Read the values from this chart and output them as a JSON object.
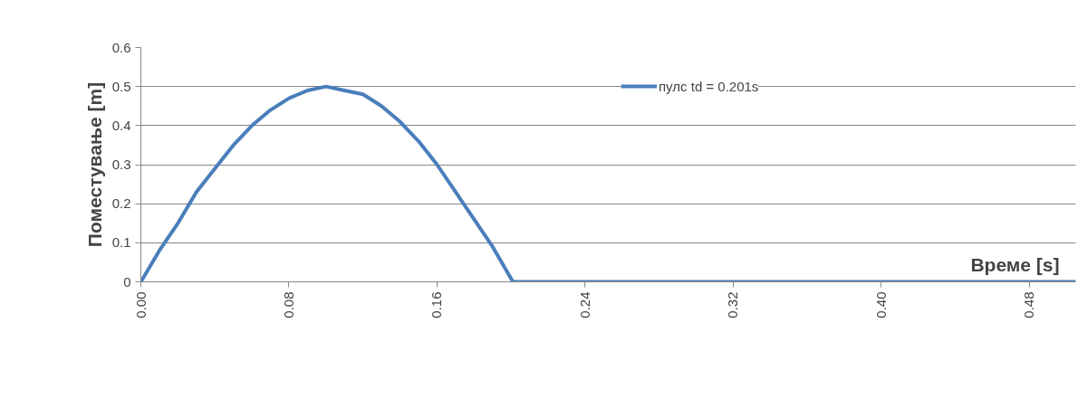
{
  "chart_data": {
    "type": "line",
    "xlabel": "Време [s]",
    "ylabel": "Поместување [m]",
    "series": [
      {
        "name": "пулс td = 0.201s",
        "color": "#4a7ebb",
        "x": [
          0,
          0.01,
          0.02,
          0.03,
          0.04,
          0.05,
          0.06,
          0.07,
          0.08,
          0.09,
          0.1,
          0.11,
          0.12,
          0.13,
          0.14,
          0.15,
          0.16,
          0.17,
          0.18,
          0.19,
          0.201,
          0.505
        ],
        "values": [
          0,
          0.08,
          0.15,
          0.23,
          0.29,
          0.35,
          0.4,
          0.44,
          0.47,
          0.49,
          0.5,
          0.49,
          0.48,
          0.45,
          0.41,
          0.36,
          0.3,
          0.23,
          0.16,
          0.09,
          0,
          0
        ]
      }
    ],
    "xlim": [
      0,
      0.505
    ],
    "xticks": [
      {
        "value": 0,
        "label": "0.00"
      },
      {
        "value": 0.08,
        "label": "0.08"
      },
      {
        "value": 0.16,
        "label": "0.16"
      },
      {
        "value": 0.24,
        "label": "0.24"
      },
      {
        "value": 0.32,
        "label": "0.32"
      },
      {
        "value": 0.4,
        "label": "0.40"
      },
      {
        "value": 0.48,
        "label": "0.48"
      }
    ],
    "ylim": [
      0,
      0.6
    ],
    "yticks": [
      0,
      {
        "value": 0.1,
        "label": "0.1"
      },
      {
        "value": 0.2,
        "label": "0.2"
      },
      {
        "value": 0.3,
        "label": "0.3"
      },
      {
        "value": 0.4,
        "label": "0.4"
      },
      {
        "value": 0.5,
        "label": "0.5"
      },
      {
        "value": 0.6,
        "label": "0.6"
      }
    ],
    "grid": "y",
    "legend": "top right",
    "marker": "none",
    "line_style": "solid"
  }
}
